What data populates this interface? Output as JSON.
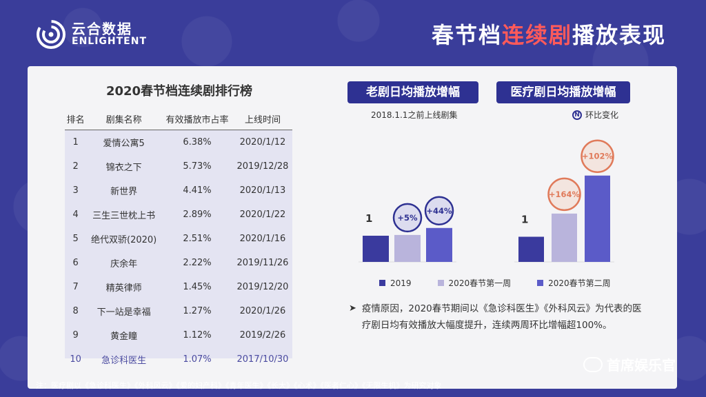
{
  "brand": {
    "name_cn": "云合数据",
    "name_en": "ENLIGHTENT"
  },
  "headline": {
    "part1": "春节档",
    "part2": "连续剧",
    "part3": "播放表现"
  },
  "ranking": {
    "title": "2020春节档连续剧排行榜",
    "headers": [
      "排名",
      "剧集名称",
      "有效播放市占率",
      "上线时间"
    ],
    "rows": [
      [
        "1",
        "爱情公寓5",
        "6.38%",
        "2020/1/12"
      ],
      [
        "2",
        "锦衣之下",
        "5.73%",
        "2019/12/28"
      ],
      [
        "3",
        "新世界",
        "4.41%",
        "2020/1/13"
      ],
      [
        "4",
        "三生三世枕上书",
        "2.89%",
        "2020/1/22"
      ],
      [
        "5",
        "绝代双骄(2020)",
        "2.51%",
        "2020/1/16"
      ],
      [
        "6",
        "庆余年",
        "2.22%",
        "2019/11/26"
      ],
      [
        "7",
        "精英律师",
        "1.45%",
        "2019/12/20"
      ],
      [
        "8",
        "下一站是幸福",
        "1.27%",
        "2020/1/26"
      ],
      [
        "9",
        "黄金瞳",
        "1.12%",
        "2019/2/26"
      ],
      [
        "10",
        "急诊科医生",
        "1.07%",
        "2017/10/30"
      ]
    ]
  },
  "panels": {
    "old_title": "老剧日均播放增幅",
    "old_subtitle": "2018.1.1之前上线剧集",
    "medical_title": "医疗剧日均播放增幅",
    "mom_label": "环比变化",
    "mom_badge": "N"
  },
  "chart_data": [
    {
      "type": "bar",
      "title": "老剧日均播放增幅",
      "categories": [
        "2019",
        "2020春节第一周",
        "2020春节第二周"
      ],
      "values": [
        1,
        1.05,
        1.51
      ],
      "annotations": [
        "1",
        "+5%",
        "+44%"
      ],
      "colors": [
        "#3a3a9e",
        "#b9b4dc",
        "#5b5bc8"
      ]
    },
    {
      "type": "bar",
      "title": "医疗剧日均播放增幅",
      "categories": [
        "2019",
        "2020春节第一周",
        "2020春节第二周"
      ],
      "values": [
        1,
        2.64,
        5.33
      ],
      "annotations": [
        "1",
        "+164%",
        "+102%"
      ],
      "colors": [
        "#3a3a9e",
        "#b9b4dc",
        "#5b5bc8"
      ]
    }
  ],
  "legend": {
    "items": [
      {
        "label": "2019",
        "color": "#3a3a9e"
      },
      {
        "label": "2020春节第一周",
        "color": "#b9b4dc"
      },
      {
        "label": "2020春节第二周",
        "color": "#5b5bc8"
      }
    ]
  },
  "note": {
    "text": "疫情原因，2020春节期间以《急诊科医生》《外科风云》为代表的医疗剧日均有效播放大幅度提升，连续两周环比增幅超100%。"
  },
  "footnote": "注：医疗剧以《急诊科医生》《外科风云》《爱的妇产科》《青年医生》《长大》《心术》《医者仁心》《无限生机》为研究对象",
  "watermark": "首席娱乐官"
}
